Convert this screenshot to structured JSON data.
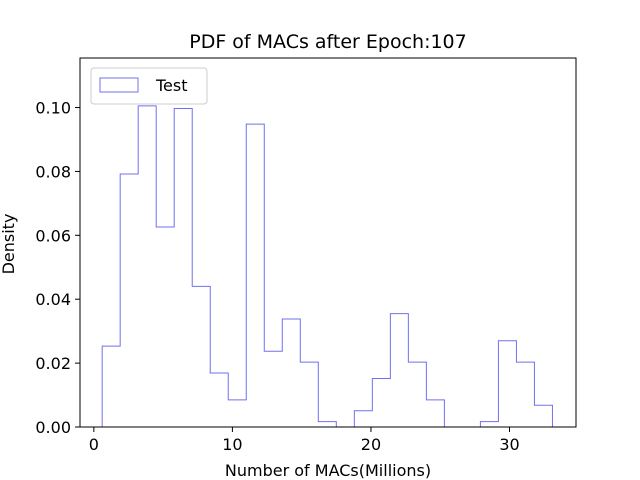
{
  "chart_data": {
    "type": "histogram",
    "title": "PDF of MACs after Epoch:107",
    "xlabel": "Number of MACs(Millions)",
    "ylabel": "Density",
    "xlim": [
      -1.0,
      34.8
    ],
    "ylim": [
      0,
      0.1155
    ],
    "xticks": [
      0,
      10,
      20,
      30
    ],
    "xtick_labels": [
      "0",
      "10",
      "20",
      "30"
    ],
    "yticks": [
      0.0,
      0.02,
      0.04,
      0.06,
      0.08,
      0.1
    ],
    "ytick_labels": [
      "0.00",
      "0.02",
      "0.04",
      "0.06",
      "0.08",
      "0.10"
    ],
    "grid": false,
    "legend_position": "top-left",
    "series": [
      {
        "name": "Test",
        "color": "#7070ee",
        "histtype": "step",
        "bin_edges": [
          0.6,
          1.9,
          3.2,
          4.5,
          5.8,
          7.1,
          8.4,
          9.7,
          11.0,
          12.3,
          13.6,
          14.9,
          16.2,
          17.5,
          18.8,
          20.1,
          21.4,
          22.7,
          24.0,
          25.3,
          26.6,
          27.9,
          29.2,
          30.5,
          31.8,
          33.1
        ],
        "density": [
          0.0253,
          0.0792,
          0.1005,
          0.0626,
          0.0997,
          0.044,
          0.0169,
          0.0085,
          0.0948,
          0.0237,
          0.0338,
          0.0203,
          0.0017,
          0.0,
          0.0051,
          0.0152,
          0.0355,
          0.0203,
          0.0085,
          0.0,
          0.0,
          0.0017,
          0.027,
          0.0203,
          0.0068
        ]
      }
    ]
  }
}
